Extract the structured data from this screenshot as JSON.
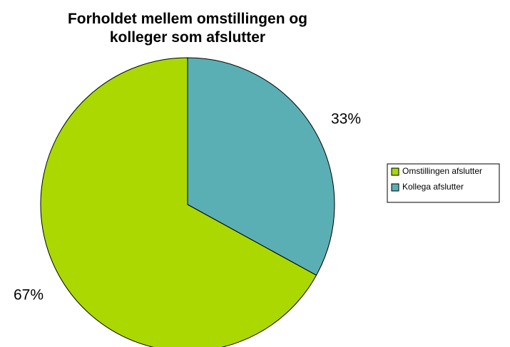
{
  "chart_data": {
    "type": "pie",
    "title": "Forholdet mellem omstillingen og kolleger som afslutter",
    "categories": [
      "Omstillingen afslutter",
      "Kollega afslutter"
    ],
    "values": [
      67,
      33
    ],
    "value_labels": [
      "67%",
      "33%"
    ],
    "colors": [
      "#aad800",
      "#5aafb4"
    ],
    "legend": "right"
  }
}
